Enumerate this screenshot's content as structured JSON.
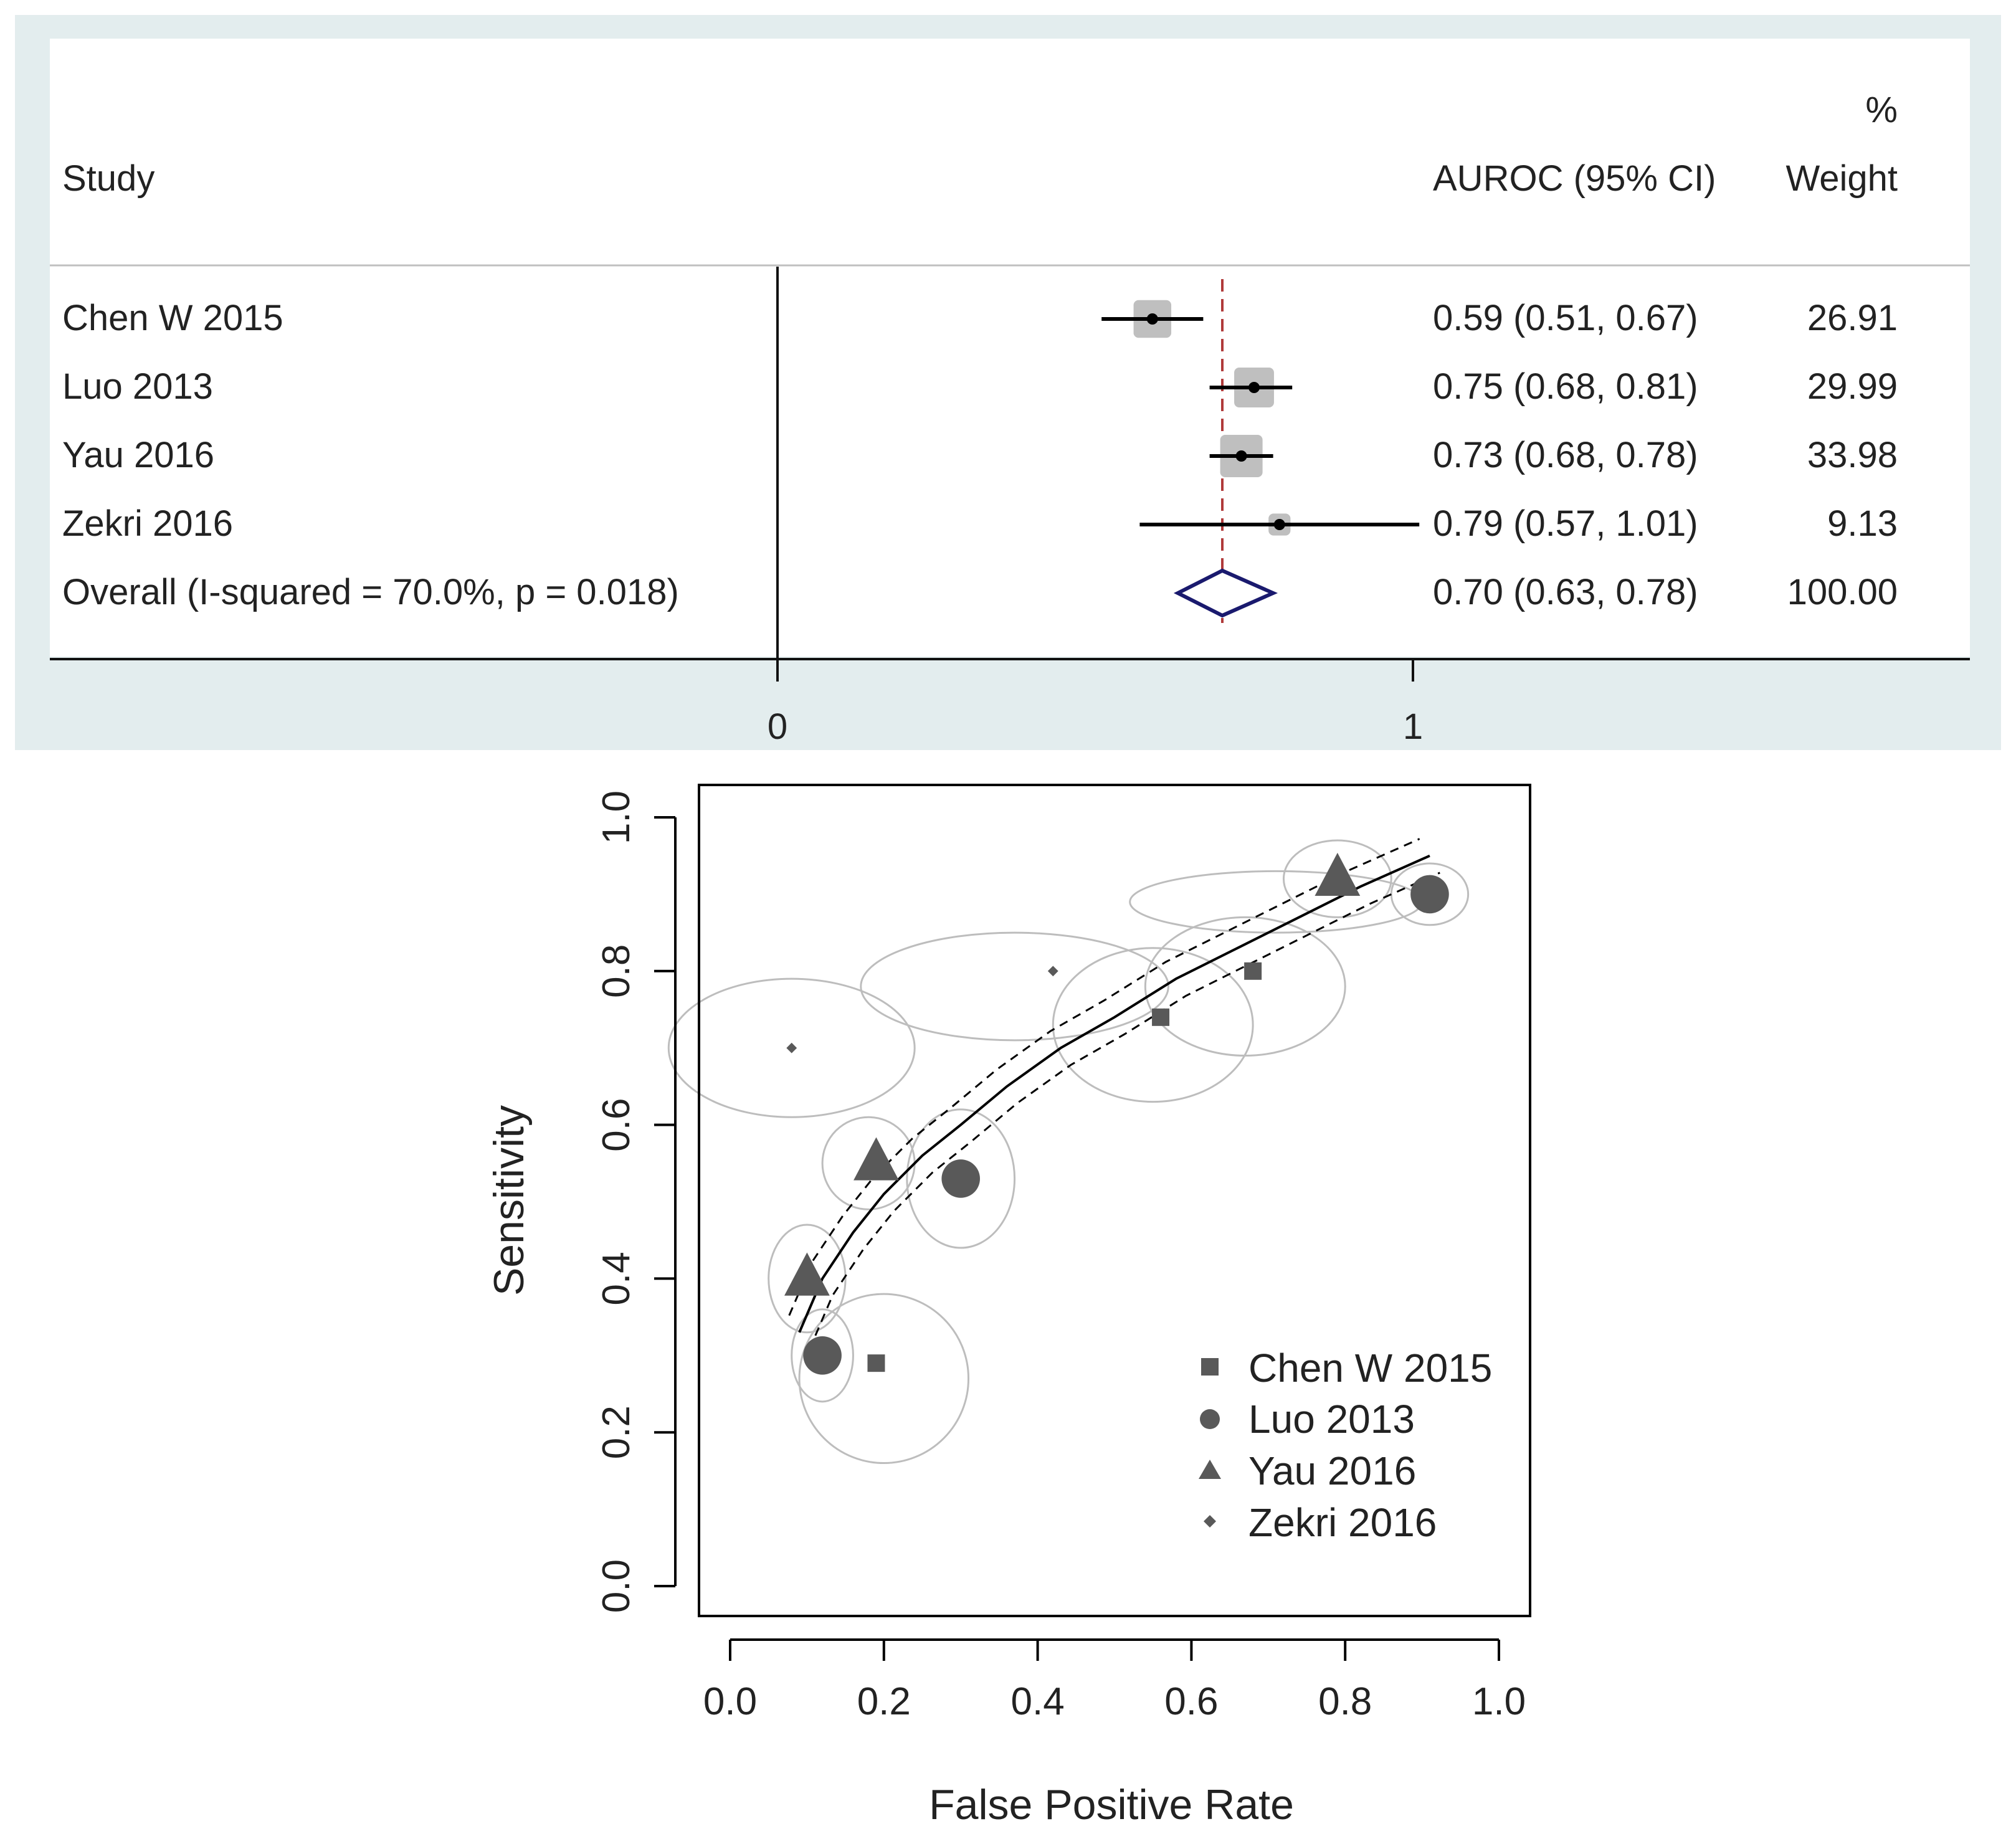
{
  "chart_data": [
    {
      "type": "forest",
      "title": "",
      "header": {
        "study": "Study",
        "pct": "%",
        "effect": "AUROC (95% CI)",
        "weight": "Weight"
      },
      "studies": [
        {
          "name": "Chen W 2015",
          "est": 0.59,
          "lo": 0.51,
          "hi": 0.67,
          "label": "0.59 (0.51, 0.67)",
          "weight": 26.91,
          "weight_label": "26.91"
        },
        {
          "name": "Luo 2013",
          "est": 0.75,
          "lo": 0.68,
          "hi": 0.81,
          "label": "0.75 (0.68, 0.81)",
          "weight": 29.99,
          "weight_label": "29.99"
        },
        {
          "name": "Yau 2016",
          "est": 0.73,
          "lo": 0.68,
          "hi": 0.78,
          "label": "0.73 (0.68, 0.78)",
          "weight": 33.98,
          "weight_label": "33.98"
        },
        {
          "name": "Zekri 2016",
          "est": 0.79,
          "lo": 0.57,
          "hi": 1.01,
          "label": "0.79 (0.57, 1.01)",
          "weight": 9.13,
          "weight_label": "9.13"
        }
      ],
      "overall": {
        "name": "Overall  (I-squared = 70.0%, p = 0.018)",
        "est": 0.7,
        "lo": 0.63,
        "hi": 0.78,
        "label": "0.70 (0.63, 0.78)",
        "weight_label": "100.00"
      },
      "x_ticks": [
        0,
        1
      ],
      "x_tick_labels": [
        "0",
        "1"
      ],
      "colors": {
        "panel_bg": "#e3edee",
        "box": "#bfbfbf",
        "diamond": "#1a1a6e",
        "ref_line": "#b03a3a"
      }
    },
    {
      "type": "scatter",
      "title": "",
      "xlabel": "False Positive Rate",
      "ylabel": "Sensitivity",
      "xlim": [
        -0.04,
        1.04
      ],
      "ylim": [
        -0.02,
        1.04
      ],
      "x_ticks": [
        0.0,
        0.2,
        0.4,
        0.6,
        0.8,
        1.0
      ],
      "x_tick_labels": [
        "0.0",
        "0.2",
        "0.4",
        "0.6",
        "0.8",
        "1.0"
      ],
      "y_ticks": [
        0.0,
        0.2,
        0.4,
        0.6,
        0.8,
        1.0
      ],
      "y_tick_labels": [
        "0.0",
        "0.2",
        "0.4",
        "0.6",
        "0.8",
        "1.0"
      ],
      "legend": {
        "position": "bottom-right"
      },
      "series": [
        {
          "name": "Chen W 2015",
          "marker": "square",
          "points": [
            {
              "x": 0.19,
              "y": 0.29,
              "size": 1
            },
            {
              "x": 0.56,
              "y": 0.74,
              "size": 1
            },
            {
              "x": 0.68,
              "y": 0.8,
              "size": 1
            }
          ]
        },
        {
          "name": "Luo 2013",
          "marker": "circle",
          "points": [
            {
              "x": 0.12,
              "y": 0.3,
              "size": 2.2
            },
            {
              "x": 0.3,
              "y": 0.53,
              "size": 2.2
            },
            {
              "x": 0.91,
              "y": 0.9,
              "size": 2.2
            }
          ]
        },
        {
          "name": "Yau 2016",
          "marker": "triangle",
          "points": [
            {
              "x": 0.1,
              "y": 0.4,
              "size": 2.6
            },
            {
              "x": 0.19,
              "y": 0.55,
              "size": 2.6
            },
            {
              "x": 0.79,
              "y": 0.92,
              "size": 2.6
            }
          ]
        },
        {
          "name": "Zekri 2016",
          "marker": "diamond",
          "points": [
            {
              "x": 0.08,
              "y": 0.7,
              "size": 0.6
            },
            {
              "x": 0.42,
              "y": 0.8,
              "size": 0.6
            }
          ]
        }
      ],
      "confidence_ellipses": [
        {
          "cx": 0.08,
          "cy": 0.7,
          "rx": 0.16,
          "ry": 0.09
        },
        {
          "cx": 0.37,
          "cy": 0.78,
          "rx": 0.2,
          "ry": 0.07
        },
        {
          "cx": 0.18,
          "cy": 0.55,
          "rx": 0.06,
          "ry": 0.06
        },
        {
          "cx": 0.3,
          "cy": 0.53,
          "rx": 0.07,
          "ry": 0.09
        },
        {
          "cx": 0.1,
          "cy": 0.4,
          "rx": 0.05,
          "ry": 0.07
        },
        {
          "cx": 0.12,
          "cy": 0.3,
          "rx": 0.04,
          "ry": 0.06
        },
        {
          "cx": 0.2,
          "cy": 0.27,
          "rx": 0.11,
          "ry": 0.11
        },
        {
          "cx": 0.55,
          "cy": 0.73,
          "rx": 0.13,
          "ry": 0.1
        },
        {
          "cx": 0.67,
          "cy": 0.78,
          "rx": 0.13,
          "ry": 0.09
        },
        {
          "cx": 0.71,
          "cy": 0.89,
          "rx": 0.19,
          "ry": 0.04
        },
        {
          "cx": 0.79,
          "cy": 0.92,
          "rx": 0.07,
          "ry": 0.05
        },
        {
          "cx": 0.91,
          "cy": 0.9,
          "rx": 0.05,
          "ry": 0.04
        }
      ],
      "sroc_curve": {
        "x": [
          0.09,
          0.12,
          0.16,
          0.2,
          0.25,
          0.3,
          0.36,
          0.43,
          0.5,
          0.58,
          0.66,
          0.74,
          0.82,
          0.91
        ],
        "y": [
          0.33,
          0.4,
          0.46,
          0.51,
          0.56,
          0.6,
          0.65,
          0.7,
          0.74,
          0.79,
          0.83,
          0.87,
          0.91,
          0.95
        ]
      },
      "colors": {
        "marker": "#595959",
        "ellipse": "#bdbdbd",
        "curve": "#000000"
      }
    }
  ]
}
